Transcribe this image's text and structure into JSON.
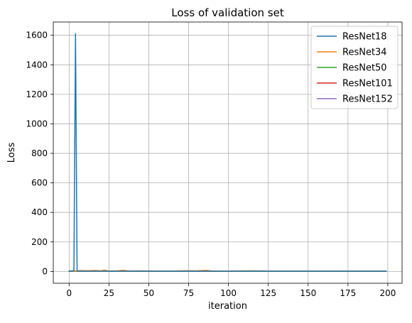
{
  "chart_data": {
    "type": "line",
    "title": "Loss of validation set",
    "xlabel": "iteration",
    "ylabel": "Loss",
    "xlim": [
      -9.95,
      208.95
    ],
    "ylim": [
      -80,
      1690
    ],
    "xticks": [
      0,
      25,
      50,
      75,
      100,
      125,
      150,
      175,
      200
    ],
    "yticks": [
      0,
      200,
      400,
      600,
      800,
      1000,
      1200,
      1400,
      1600
    ],
    "grid": true,
    "legend_position": "top-right",
    "series": [
      {
        "name": "ResNet18",
        "color": "#1f77b4",
        "x": [
          0,
          1,
          2,
          3,
          4,
          5,
          6,
          7,
          8,
          10,
          15,
          20,
          30,
          40,
          60,
          80,
          100,
          120,
          140,
          160,
          180,
          199
        ],
        "y": [
          3,
          4,
          3,
          6,
          1610,
          4,
          3,
          3,
          2,
          2,
          2,
          2,
          2,
          2,
          2,
          2,
          2,
          2,
          2,
          2,
          2,
          2
        ]
      },
      {
        "name": "ResNet34",
        "color": "#ff7f0e",
        "x": [
          0,
          5,
          8,
          12,
          16,
          20,
          22,
          25,
          30,
          34,
          38,
          45,
          55,
          65,
          75,
          80,
          86,
          90,
          100,
          115,
          130,
          150,
          170,
          190,
          199
        ],
        "y": [
          3,
          4,
          6,
          5,
          7,
          4,
          9,
          3,
          4,
          8,
          3,
          4,
          3,
          3,
          5,
          4,
          8,
          3,
          3,
          4,
          3,
          3,
          3,
          3,
          3
        ]
      },
      {
        "name": "ResNet50",
        "color": "#2ca02c",
        "x": [
          0,
          20,
          40,
          60,
          80,
          100,
          120,
          140,
          160,
          180,
          199
        ],
        "y": [
          2,
          2,
          2,
          2,
          2,
          2,
          2,
          2,
          2,
          2,
          2
        ]
      },
      {
        "name": "ResNet101",
        "color": "#d62728",
        "x": [
          0,
          20,
          40,
          60,
          80,
          100,
          120,
          140,
          160,
          180,
          199
        ],
        "y": [
          2,
          2,
          2,
          2,
          2,
          2,
          2,
          2,
          2,
          2,
          2
        ]
      },
      {
        "name": "ResNet152",
        "color": "#9467bd",
        "x": [
          0,
          20,
          40,
          60,
          80,
          100,
          120,
          140,
          160,
          180,
          199
        ],
        "y": [
          2,
          2,
          2,
          2,
          2,
          2,
          2,
          2,
          2,
          2,
          2
        ]
      }
    ]
  }
}
